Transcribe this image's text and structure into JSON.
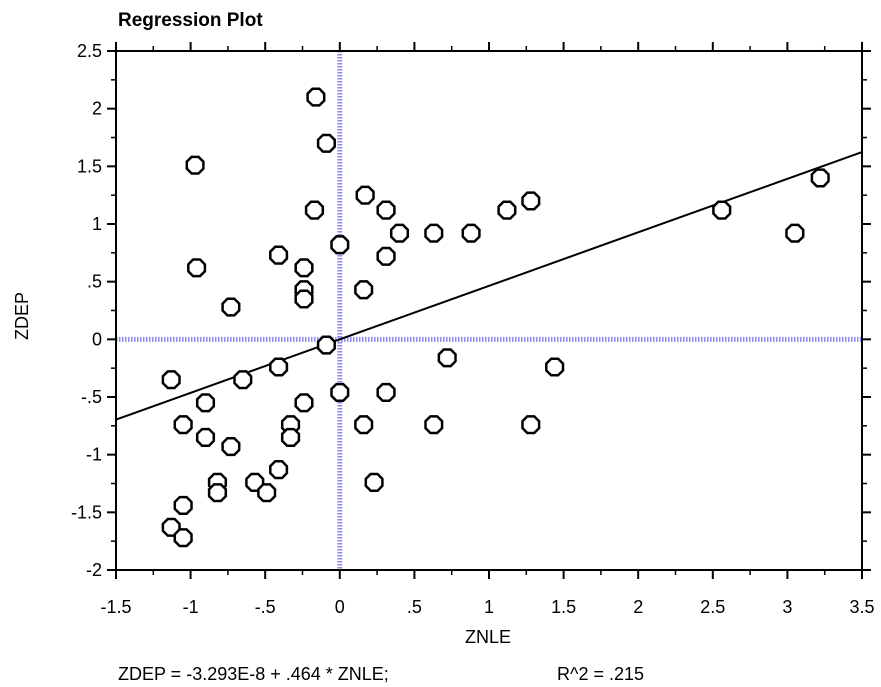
{
  "chart_data": {
    "type": "scatter",
    "title": "Regression Plot",
    "xlabel": "ZNLE",
    "ylabel": "ZDEP",
    "xlim": [
      -1.5,
      3.5
    ],
    "ylim": [
      -2,
      2.5
    ],
    "x_ticks": [
      "-1.5",
      "-1",
      "-.5",
      "0",
      ".5",
      "1",
      "1.5",
      "2",
      "2.5",
      "3",
      "3.5"
    ],
    "y_ticks": [
      "-2",
      "-1.5",
      "-1",
      "-.5",
      "0",
      ".5",
      "1",
      "1.5",
      "2",
      "2.5"
    ],
    "grid": false,
    "zero_lines": true,
    "regression": {
      "intercept": -3.293e-08,
      "slope": 0.464
    },
    "equation_text": "ZDEP = -3.293E-8 + .464 * ZNLE;",
    "r2_text": "R^2 = .215",
    "points": [
      {
        "x": -0.16,
        "y": 2.1
      },
      {
        "x": -0.09,
        "y": 1.7
      },
      {
        "x": -0.97,
        "y": 1.51
      },
      {
        "x": 3.22,
        "y": 1.4
      },
      {
        "x": 0.17,
        "y": 1.25
      },
      {
        "x": 1.28,
        "y": 1.2
      },
      {
        "x": 0.31,
        "y": 1.12
      },
      {
        "x": 1.12,
        "y": 1.12
      },
      {
        "x": 2.56,
        "y": 1.12
      },
      {
        "x": -0.17,
        "y": 1.12
      },
      {
        "x": 0.4,
        "y": 0.92
      },
      {
        "x": 0.63,
        "y": 0.92
      },
      {
        "x": 0.88,
        "y": 0.92
      },
      {
        "x": 3.05,
        "y": 0.92
      },
      {
        "x": 0.0,
        "y": 0.82
      },
      {
        "x": 0.31,
        "y": 0.72
      },
      {
        "x": -0.41,
        "y": 0.73
      },
      {
        "x": -0.96,
        "y": 0.62
      },
      {
        "x": -0.24,
        "y": 0.62
      },
      {
        "x": -0.24,
        "y": 0.43
      },
      {
        "x": 0.16,
        "y": 0.43
      },
      {
        "x": -0.24,
        "y": 0.35
      },
      {
        "x": -0.73,
        "y": 0.28
      },
      {
        "x": -0.09,
        "y": -0.05
      },
      {
        "x": 0.72,
        "y": -0.16
      },
      {
        "x": -0.41,
        "y": -0.24
      },
      {
        "x": 1.44,
        "y": -0.24
      },
      {
        "x": -1.13,
        "y": -0.35
      },
      {
        "x": -0.65,
        "y": -0.35
      },
      {
        "x": 0.0,
        "y": -0.46
      },
      {
        "x": 0.31,
        "y": -0.46
      },
      {
        "x": -0.9,
        "y": -0.55
      },
      {
        "x": -0.24,
        "y": -0.55
      },
      {
        "x": -1.05,
        "y": -0.74
      },
      {
        "x": -0.33,
        "y": -0.74
      },
      {
        "x": 0.16,
        "y": -0.74
      },
      {
        "x": 0.63,
        "y": -0.74
      },
      {
        "x": 1.28,
        "y": -0.74
      },
      {
        "x": -0.9,
        "y": -0.85
      },
      {
        "x": -0.33,
        "y": -0.85
      },
      {
        "x": -0.73,
        "y": -0.93
      },
      {
        "x": -0.41,
        "y": -1.13
      },
      {
        "x": -0.82,
        "y": -1.24
      },
      {
        "x": -0.57,
        "y": -1.24
      },
      {
        "x": 0.23,
        "y": -1.24
      },
      {
        "x": -0.82,
        "y": -1.33
      },
      {
        "x": -0.49,
        "y": -1.33
      },
      {
        "x": -1.05,
        "y": -1.44
      },
      {
        "x": -1.13,
        "y": -1.63
      },
      {
        "x": -1.05,
        "y": -1.72
      }
    ]
  }
}
